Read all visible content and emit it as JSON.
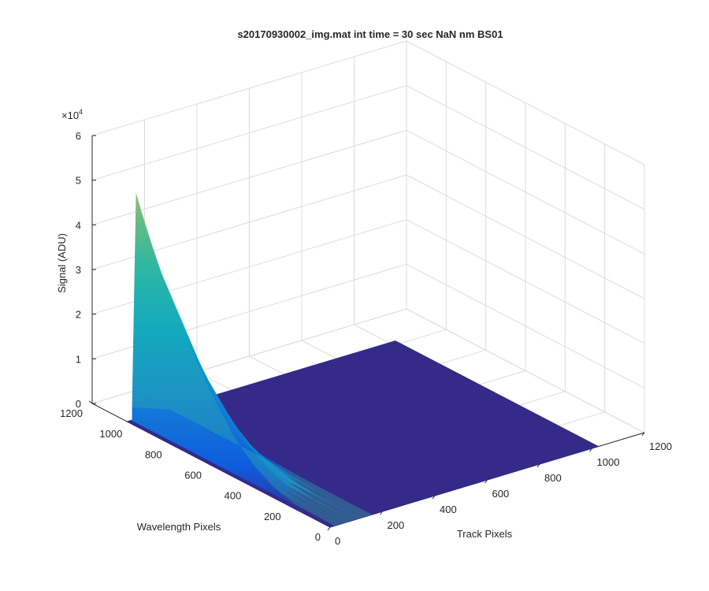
{
  "window": {
    "background": "#ffffff"
  },
  "chart_data": {
    "type": "surface",
    "title": "s20170930002_img.mat int time = 30 sec  NaN nm BS01",
    "xlabel": "Track Pixels",
    "ylabel": "Wavelength Pixels",
    "zlabel": "Signal (ADU)",
    "z_exponent_label": "×10",
    "z_exponent_power": "4",
    "xlim": [
      0,
      1200
    ],
    "ylim": [
      0,
      1200
    ],
    "zlim": [
      0,
      60000
    ],
    "x_ticks": [
      "0",
      "200",
      "400",
      "600",
      "800",
      "1000",
      "1200"
    ],
    "y_ticks": [
      "0",
      "200",
      "400",
      "600",
      "800",
      "1000",
      "1200"
    ],
    "z_ticks": [
      "0",
      "1",
      "2",
      "3",
      "4",
      "5",
      "6"
    ],
    "x_data_range": [
      0,
      1024
    ],
    "y_data_range": [
      0,
      1024
    ],
    "peak": {
      "track_pixel": 0,
      "wavelength_pixel": 1000,
      "signal": 51500
    },
    "ridge_profile_along_wavelength": [
      {
        "wavelength_pixel": 1020,
        "signal": 3000
      },
      {
        "wavelength_pixel": 1000,
        "signal": 51500
      },
      {
        "wavelength_pixel": 950,
        "signal": 45000
      },
      {
        "wavelength_pixel": 900,
        "signal": 39000
      },
      {
        "wavelength_pixel": 800,
        "signal": 30000
      },
      {
        "wavelength_pixel": 700,
        "signal": 21000
      },
      {
        "wavelength_pixel": 600,
        "signal": 14000
      },
      {
        "wavelength_pixel": 500,
        "signal": 8000
      },
      {
        "wavelength_pixel": 400,
        "signal": 4000
      },
      {
        "wavelength_pixel": 300,
        "signal": 1500
      },
      {
        "wavelength_pixel": 200,
        "signal": 300
      },
      {
        "wavelength_pixel": 0,
        "signal": 0
      }
    ],
    "signal_track_extent_pixels": 160,
    "baseline_signal": 0,
    "colormap": "parula",
    "colors": {
      "low": "#352a87",
      "mid_low": "#0f5cdd",
      "mid": "#1481d6",
      "mid_high": "#06a4ca",
      "high": "#2eb7a4",
      "upper": "#87bf77",
      "top": "#d1bb59"
    },
    "grid": true,
    "view": "3d-default"
  }
}
